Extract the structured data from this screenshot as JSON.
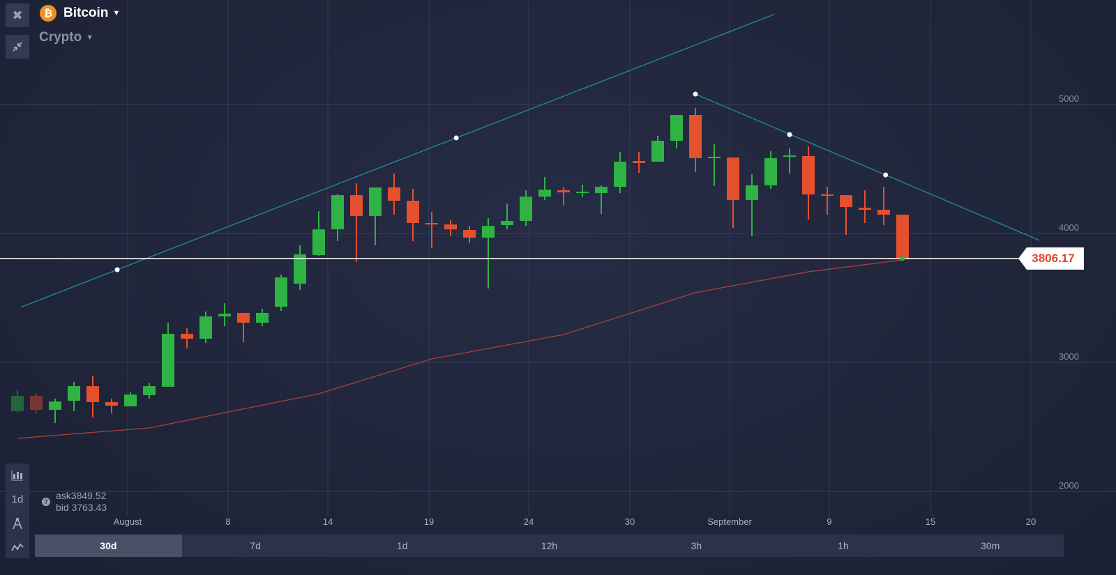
{
  "header": {
    "asset_name": "Bitcoin",
    "asset_icon": "bitcoin-coin-icon",
    "coin_glyph": "₿",
    "category": "Crypto"
  },
  "toolbar_top": {
    "close_icon": "close-icon",
    "collapse_icon": "collapse-arrows-icon"
  },
  "toolbar_bottom": {
    "chart_type_icon": "candlestick-chart-icon",
    "interval_label": "1d",
    "drawing_icon": "compass-icon",
    "indicators_icon": "indicators-icon"
  },
  "quote": {
    "ask_label": "ask",
    "ask_value": "3849.52",
    "bid_label": "bid",
    "bid_value": "3763.43"
  },
  "current_price": "3806.17",
  "timeframes": [
    {
      "label": "30d",
      "active": true
    },
    {
      "label": "7d",
      "active": false
    },
    {
      "label": "1d",
      "active": false
    },
    {
      "label": "12h",
      "active": false
    },
    {
      "label": "3h",
      "active": false
    },
    {
      "label": "1h",
      "active": false
    },
    {
      "label": "30m",
      "active": false
    }
  ],
  "colors": {
    "up": "#2fb344",
    "down": "#e5502e",
    "trendline": "#1f8fa0",
    "moving_average": "#a8423a",
    "price_line": "#ffffff"
  },
  "chart_data": {
    "type": "candlestick",
    "ylim": [
      1900,
      5250
    ],
    "y_ticks": [
      "2000",
      "3000",
      "4000",
      "5000"
    ],
    "x_ticks": [
      "August",
      "8",
      "14",
      "19",
      "24",
      "30",
      "September",
      "9",
      "15",
      "20"
    ],
    "grid": true,
    "candles": [
      [
        2622,
        2741,
        2784,
        2611
      ],
      [
        2741,
        2632,
        2760,
        2605
      ],
      [
        2632,
        2697,
        2719,
        2530
      ],
      [
        2703,
        2816,
        2849,
        2622
      ],
      [
        2816,
        2692,
        2897,
        2573
      ],
      [
        2692,
        2665,
        2719,
        2605
      ],
      [
        2659,
        2751,
        2768,
        2659
      ],
      [
        2746,
        2816,
        2838,
        2719
      ],
      [
        2811,
        3222,
        3308,
        2811
      ],
      [
        3222,
        3184,
        3265,
        3108
      ],
      [
        3184,
        3357,
        3395,
        3151
      ],
      [
        3357,
        3378,
        3459,
        3281
      ],
      [
        3384,
        3308,
        3384,
        3157
      ],
      [
        3308,
        3384,
        3416,
        3281
      ],
      [
        3432,
        3659,
        3681,
        3400
      ],
      [
        3611,
        3838,
        3908,
        3562
      ],
      [
        3832,
        4032,
        4173,
        3827
      ],
      [
        4032,
        4297,
        4308,
        3940
      ],
      [
        4297,
        4135,
        4389,
        3778
      ],
      [
        4135,
        4357,
        4357,
        3908
      ],
      [
        4357,
        4254,
        4465,
        4146
      ],
      [
        4254,
        4081,
        4346,
        3940
      ],
      [
        4081,
        4070,
        4168,
        3886
      ],
      [
        4070,
        4032,
        4103,
        3978
      ],
      [
        4027,
        3968,
        4059,
        3924
      ],
      [
        3968,
        4059,
        4119,
        3573
      ],
      [
        4065,
        4097,
        4232,
        4032
      ],
      [
        4097,
        4286,
        4335,
        4059
      ],
      [
        4286,
        4340,
        4438,
        4259
      ],
      [
        4335,
        4319,
        4357,
        4216
      ],
      [
        4313,
        4324,
        4378,
        4286
      ],
      [
        4313,
        4362,
        4373,
        4151
      ],
      [
        4362,
        4557,
        4632,
        4313
      ],
      [
        4562,
        4546,
        4632,
        4470
      ],
      [
        4557,
        4719,
        4757,
        4557
      ],
      [
        4719,
        4919,
        4919,
        4659
      ],
      [
        4919,
        4584,
        4973,
        4476
      ],
      [
        4584,
        4595,
        4692,
        4368
      ],
      [
        4589,
        4259,
        4589,
        4043
      ],
      [
        4259,
        4373,
        4459,
        3978
      ],
      [
        4373,
        4584,
        4638,
        4346
      ],
      [
        4595,
        4605,
        4659,
        4465
      ],
      [
        4600,
        4303,
        4676,
        4108
      ],
      [
        4303,
        4292,
        4362,
        4146
      ],
      [
        4297,
        4205,
        4297,
        3989
      ],
      [
        4200,
        4184,
        4335,
        4081
      ],
      [
        4184,
        4146,
        4362,
        4065
      ],
      [
        4146,
        3806.17,
        4146,
        3806.17
      ]
    ],
    "candle_fields": [
      "open",
      "close",
      "high",
      "low"
    ],
    "moving_average": [
      [
        0,
        2411
      ],
      [
        7,
        2492
      ],
      [
        16,
        2757
      ],
      [
        22,
        3027
      ],
      [
        29,
        3216
      ],
      [
        36,
        3541
      ],
      [
        42,
        3703
      ],
      [
        47,
        3795
      ]
    ],
    "trendlines": [
      {
        "points": [
          [
            5.3,
            3719
          ],
          [
            23.3,
            4741
          ]
        ],
        "extend": true
      },
      {
        "points": [
          [
            36,
            5081
          ],
          [
            41,
            4767
          ],
          [
            46.1,
            4454
          ]
        ],
        "extend": true
      }
    ]
  }
}
